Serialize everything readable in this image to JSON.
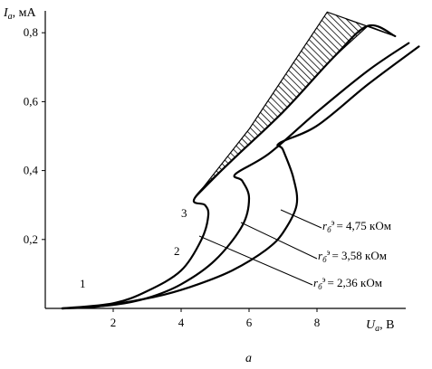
{
  "chart_data": {
    "type": "line",
    "title": "",
    "caption": "а",
    "xaxis": {
      "label_main": "U",
      "label_sub": "а",
      "label_unit": ", В",
      "range": [
        0,
        11
      ],
      "ticks": [
        "2",
        "4",
        "6",
        "8"
      ]
    },
    "yaxis": {
      "label_main": "I",
      "label_sub": "а",
      "label_unit": ", мА",
      "range": [
        0,
        0.85
      ],
      "ticks": [
        "0,2",
        "0,4",
        "0,6",
        "0,8"
      ]
    },
    "series": [
      {
        "name": "1",
        "legend": "rб' = 2,36 кОм",
        "legend_value": "= 2,36 кОм",
        "points": [
          [
            0.5,
            0
          ],
          [
            1.5,
            0.005
          ],
          [
            2.5,
            0.02
          ],
          [
            3.5,
            0.04
          ],
          [
            4.5,
            0.07
          ],
          [
            5.5,
            0.11
          ],
          [
            6.5,
            0.17
          ],
          [
            7.0,
            0.22
          ],
          [
            7.4,
            0.3
          ],
          [
            7.3,
            0.38
          ],
          [
            7.0,
            0.46
          ],
          [
            6.9,
            0.48
          ],
          [
            8.0,
            0.53
          ],
          [
            9.5,
            0.65
          ],
          [
            11.0,
            0.76
          ]
        ]
      },
      {
        "name": "2",
        "legend": "rб' = 3,58 кОм",
        "legend_value": "= 3,58 кОм",
        "points": [
          [
            0.5,
            0
          ],
          [
            2.0,
            0.01
          ],
          [
            3.0,
            0.03
          ],
          [
            4.0,
            0.07
          ],
          [
            5.0,
            0.14
          ],
          [
            5.8,
            0.24
          ],
          [
            6.0,
            0.32
          ],
          [
            5.8,
            0.37
          ],
          [
            5.6,
            0.39
          ],
          [
            6.6,
            0.45
          ],
          [
            8.0,
            0.57
          ],
          [
            9.5,
            0.69
          ],
          [
            10.7,
            0.77
          ]
        ]
      },
      {
        "name": "3",
        "legend": "rб' = 4,75 кОм",
        "legend_value": "= 4,75 кОм",
        "points": [
          [
            0.5,
            0
          ],
          [
            2.0,
            0.015
          ],
          [
            3.0,
            0.05
          ],
          [
            4.0,
            0.11
          ],
          [
            4.6,
            0.2
          ],
          [
            4.8,
            0.27
          ],
          [
            4.7,
            0.3
          ],
          [
            4.4,
            0.32
          ],
          [
            5.5,
            0.43
          ],
          [
            7.0,
            0.57
          ],
          [
            8.5,
            0.73
          ],
          [
            9.5,
            0.82
          ],
          [
            10.3,
            0.79
          ]
        ]
      }
    ],
    "shaded_region": "hatched region between the upper envelope and curve 3"
  }
}
